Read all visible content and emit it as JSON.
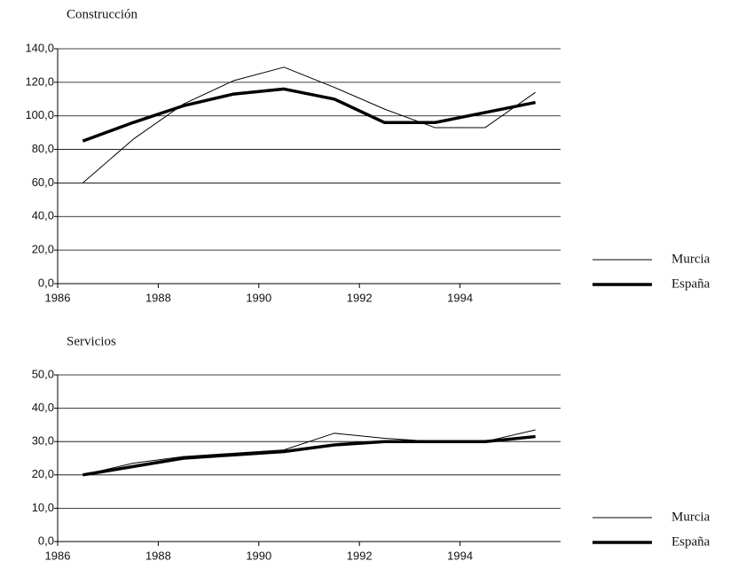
{
  "chart_data": [
    {
      "type": "line",
      "title": "Construcción",
      "x": [
        1986.5,
        1987.5,
        1988.5,
        1989.5,
        1990.5,
        1991.5,
        1992.5,
        1993.5,
        1994.5,
        1995.5
      ],
      "series": [
        {
          "name": "Murcia",
          "color": "#000000",
          "line_width": 1,
          "values": [
            60,
            86,
            107,
            121,
            129,
            117,
            104,
            93,
            93,
            114
          ]
        },
        {
          "name": "España",
          "color": "#000000",
          "line_width": 3.5,
          "values": [
            85,
            96,
            106,
            113,
            116,
            110,
            96,
            96,
            102,
            108
          ]
        }
      ],
      "xlim": [
        1986,
        1996
      ],
      "xticks": [
        1986,
        1988,
        1990,
        1992,
        1994
      ],
      "ylim": [
        0,
        140
      ],
      "yticks": [
        {
          "value": 0,
          "label": "0,0"
        },
        {
          "value": 20,
          "label": "20,0"
        },
        {
          "value": 40,
          "label": "40,0"
        },
        {
          "value": 60,
          "label": "60,0"
        },
        {
          "value": 80,
          "label": "80,0"
        },
        {
          "value": 100,
          "label": "100,0"
        },
        {
          "value": 120,
          "label": "120,0"
        },
        {
          "value": 140,
          "label": "140,0"
        }
      ],
      "grid": true,
      "legend": "right"
    },
    {
      "type": "line",
      "title": "Servicios",
      "x": [
        1986.5,
        1987.5,
        1988.5,
        1989.5,
        1990.5,
        1991.5,
        1992.5,
        1993.5,
        1994.5,
        1995.5
      ],
      "series": [
        {
          "name": "Murcia",
          "color": "#000000",
          "line_width": 1,
          "values": [
            20,
            23.5,
            25.5,
            26.5,
            27.5,
            32.5,
            31,
            30,
            30,
            33.5
          ]
        },
        {
          "name": "España",
          "color": "#000000",
          "line_width": 3.5,
          "values": [
            20,
            22.5,
            25,
            26,
            27,
            29,
            30,
            30,
            30,
            31.5
          ]
        }
      ],
      "xlim": [
        1986,
        1996
      ],
      "xticks": [
        1986,
        1988,
        1990,
        1992,
        1994
      ],
      "ylim": [
        0,
        50
      ],
      "yticks": [
        {
          "value": 0,
          "label": "0,0"
        },
        {
          "value": 10,
          "label": "10,0"
        },
        {
          "value": 20,
          "label": "20,0"
        },
        {
          "value": 30,
          "label": "30,0"
        },
        {
          "value": 40,
          "label": "40,0"
        },
        {
          "value": 50,
          "label": "50,0"
        }
      ],
      "grid": true,
      "legend": "right"
    }
  ]
}
